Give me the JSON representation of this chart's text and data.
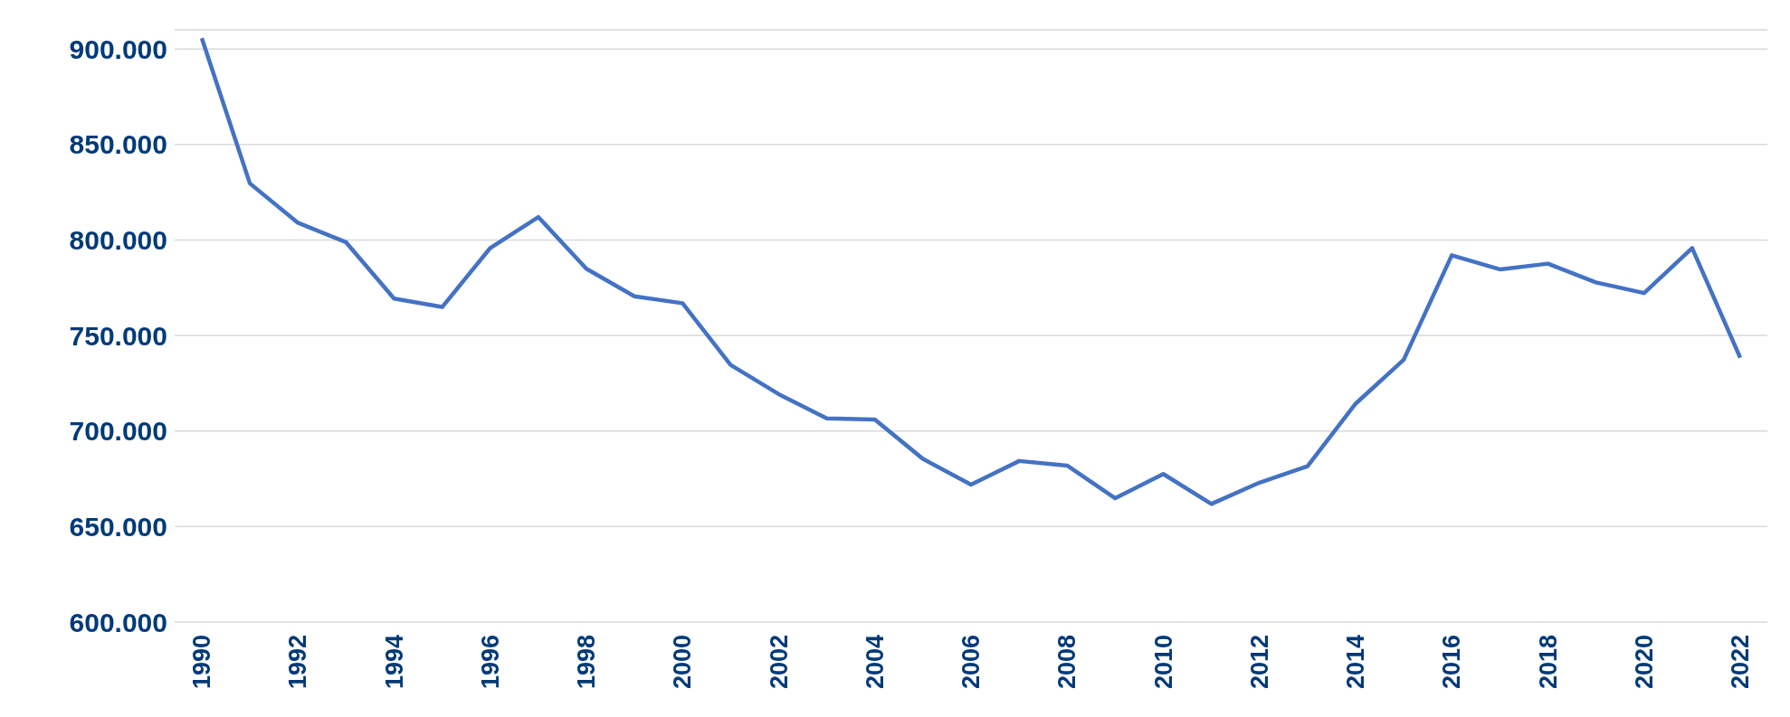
{
  "chart_data": {
    "type": "line",
    "categories": [
      "1990",
      null,
      "1992",
      null,
      "1994",
      null,
      "1996",
      null,
      "1998",
      null,
      "2000",
      null,
      "2002",
      null,
      "2004",
      null,
      "2006",
      null,
      "2008",
      null,
      "2010",
      null,
      "2012",
      null,
      "2014",
      null,
      "2016",
      null,
      "2018",
      null,
      "2020",
      null,
      "2022"
    ],
    "series": [
      {
        "color": "#4472c4",
        "values": [
          905600,
          829600,
          809000,
          798800,
          769300,
          764900,
          795800,
          812000,
          784900,
          770500,
          766900,
          734600,
          719300,
          706600,
          706000,
          685400,
          671900,
          684300,
          681900,
          664800,
          677500,
          661800,
          673000,
          681600,
          714300,
          737300,
          792000,
          784600,
          787600,
          777800,
          772200,
          795800,
          738400
        ]
      }
    ],
    "ylim": [
      600000,
      910000
    ],
    "yticks": [
      {
        "value": 600000,
        "label": "600.000"
      },
      {
        "value": 650000,
        "label": "650.000"
      },
      {
        "value": 700000,
        "label": "700.000"
      },
      {
        "value": 750000,
        "label": "750.000"
      },
      {
        "value": 800000,
        "label": "800.000"
      },
      {
        "value": 850000,
        "label": "850.000"
      },
      {
        "value": 900000,
        "label": "900.000"
      }
    ],
    "grid": "y",
    "marker": "none",
    "line_style": "solid",
    "legend": false
  }
}
